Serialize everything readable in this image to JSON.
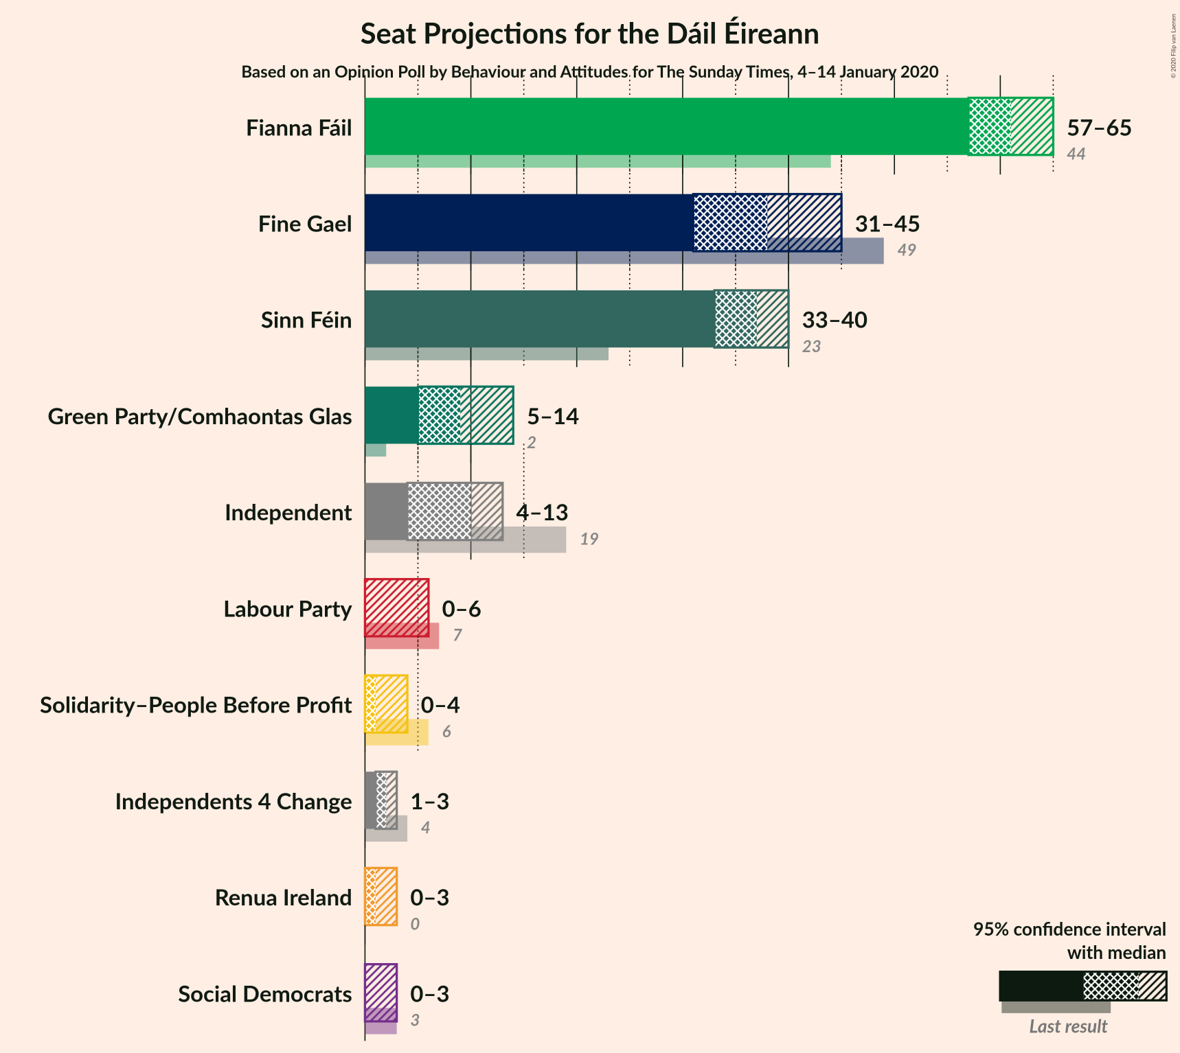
{
  "chart_data": {
    "type": "seat-range",
    "title": "Seat Projections for the Dáil Éireann",
    "subtitle": "Based on an Opinion Poll by Behaviour and Attitudes for The Sunday Times, 4–14 January 2020",
    "copyright": "© 2020 Filip van Laenen",
    "xlim": [
      0,
      65
    ],
    "xticks": [
      0,
      5,
      10,
      15,
      20,
      25,
      30,
      35,
      40,
      45,
      50,
      55,
      60,
      65
    ],
    "legend": {
      "interval": "95% confidence interval",
      "median": "with median",
      "last": "Last result"
    },
    "series": [
      {
        "name": "Fianna Fáil",
        "color": "#00a650",
        "low": 57,
        "median": 61,
        "high": 65,
        "range_label": "57–65",
        "last": 44
      },
      {
        "name": "Fine Gael",
        "color": "#001f56",
        "low": 31,
        "median": 38,
        "high": 45,
        "range_label": "31–45",
        "last": 49
      },
      {
        "name": "Sinn Féin",
        "color": "#32675f",
        "low": 33,
        "median": 37,
        "high": 40,
        "range_label": "33–40",
        "last": 23
      },
      {
        "name": "Green Party/Comhaontas Glas",
        "color": "#0a7560",
        "low": 5,
        "median": 9,
        "high": 14,
        "range_label": "5–14",
        "last": 2
      },
      {
        "name": "Independent",
        "color": "#808080",
        "low": 4,
        "median": 10,
        "high": 13,
        "range_label": "4–13",
        "last": 19
      },
      {
        "name": "Labour Party",
        "color": "#cc1d2f",
        "low": 0,
        "median": 0,
        "high": 6,
        "range_label": "0–6",
        "last": 7
      },
      {
        "name": "Solidarity–People Before Profit",
        "color": "#f5c214",
        "low": 0,
        "median": 1,
        "high": 4,
        "range_label": "0–4",
        "last": 6
      },
      {
        "name": "Independents 4 Change",
        "color": "#808080",
        "low": 1,
        "median": 2,
        "high": 3,
        "range_label": "1–3",
        "last": 4
      },
      {
        "name": "Renua Ireland",
        "color": "#f19a30",
        "low": 0,
        "median": 1,
        "high": 3,
        "range_label": "0–3",
        "last": 0
      },
      {
        "name": "Social Democrats",
        "color": "#752f8b",
        "low": 0,
        "median": 0,
        "high": 3,
        "range_label": "0–3",
        "last": 3
      }
    ]
  }
}
